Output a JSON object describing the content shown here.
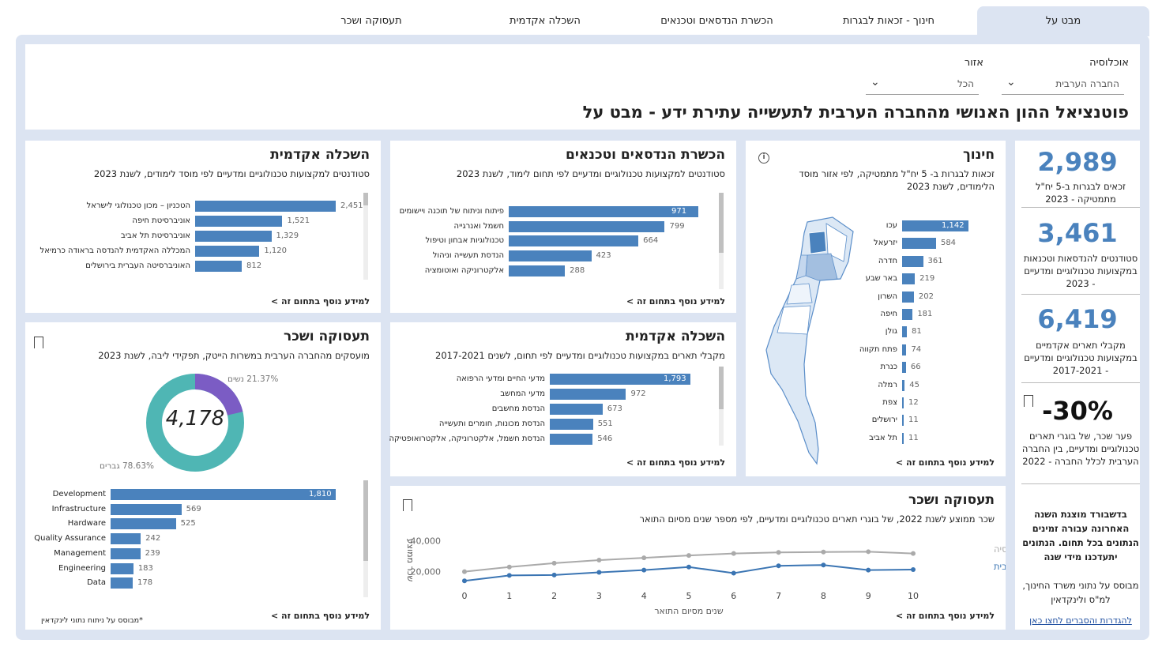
{
  "tabs": [
    {
      "label": "מבט על",
      "active": true
    },
    {
      "label": "חינוך - זכאות לבגרות",
      "active": false
    },
    {
      "label": "הכשרת הנדסאים וטכנאים",
      "active": false
    },
    {
      "label": "השכלה אקדמית",
      "active": false
    },
    {
      "label": "תעסוקה ושכר",
      "active": false
    }
  ],
  "header": {
    "title": "פוטנציאל ההון האנושי מהחברה הערבית לתעשייה עתירת ידע - מבט על",
    "population_label": "אוכלוסיה",
    "population_value": "החברה הערבית",
    "region_label": "אזור",
    "region_value": "הכל"
  },
  "kpis": [
    {
      "value": "2,989",
      "text": "זכאים לבגרות ב-5 יח\"ל מתמטיקה - 2023"
    },
    {
      "value": "3,461",
      "text": "סטודנטים להנדסאות וטכנאות במקצועות טכנולוגיים ומדעיים - 2023"
    },
    {
      "value": "6,419",
      "text": "מקבלי תארים אקדמיים במקצועות טכנולוגיים ומדעיים - 2017-2021"
    },
    {
      "value": "-30%",
      "text": "פער שכר, של בוגרי תארים טכנולוגיים ומדעיים, בין החברה הערבית לכלל החברה - 2022"
    }
  ],
  "side_note": {
    "update_text": "בדשבורד מוצגת השנה האחרונה עבורה זמינים הנתונים בכל תחום. הנתונים יתעדכנו מידי שנה",
    "source_text": "מבוסס על נתוני משרד החינוך, למ\"ס ולינקדאין",
    "link": "להגדרות והסברים לחצו כאן"
  },
  "more_link": "למידע נוסף בתחום זה >",
  "education": {
    "title": "חינוך",
    "subtitle_1": "זכאות לבגרות ב- 5 יח\"ל מתמטיקה, לפי אזור מוסד",
    "subtitle_2": "הלימודים, לשנת 2023",
    "colors": {
      "bar": "#4a82bd",
      "map_fill": "#dce8f5",
      "map_stroke": "#5b8ec9",
      "map_dark": "#4a82bd"
    }
  },
  "engineers": {
    "title": "הכשרת הנדסאים וטכנאים",
    "subtitle": "סטודנטים למקצועות טכנולוגיים ומדעיים לפי תחום לימוד, לשנת 2023"
  },
  "academic_students": {
    "title": "השכלה אקדמית",
    "subtitle": "סטודנטים למקצועות טכנולוגיים ומדעיים לפי מוסד לימודים, לשנת 2023"
  },
  "academic_degrees": {
    "title": "השכלה אקדמית",
    "subtitle": "מקבלי תארים במקצועות טכנולוגיים ומדעיים לפי תחום, לשנים 2017-2021"
  },
  "employment": {
    "title": "תעסוקה ושכר",
    "subtitle": "מועסקים מהחברה הערבית במשרות הייטק, תפקידי ליבה, לשנת 2023",
    "total": "4,178",
    "footnote": "*מבוסס על ניתוח נתוני לינקדאין",
    "colors": {
      "women": "#7b5cc4",
      "men": "#4fb6b4"
    }
  },
  "salary": {
    "title": "תעסוקה ושכר",
    "subtitle": "שכר ממוצע לשנת 2022, של בוגרי תארים טכנולוגיים ומדעיים, לפי מספר שנים מסיום התואר",
    "colors": {
      "all": "#aaaaaa",
      "arab": "#3b75b3"
    }
  },
  "chart_data": [
    {
      "type": "bar",
      "title": "חינוך",
      "categories": [
        "עכו",
        "יזרעאל",
        "חדרה",
        "באר שבע",
        "השרון",
        "חיפה",
        "גולן",
        "פתח תקווה",
        "כנרת",
        "רמלה",
        "צפת",
        "ירושלים",
        "תל אביב"
      ],
      "values": [
        1142,
        584,
        361,
        219,
        202,
        181,
        81,
        74,
        66,
        45,
        12,
        11,
        11
      ],
      "labels": [
        "1,142",
        "584",
        "361",
        "219",
        "202",
        "181",
        "81",
        "74",
        "66",
        "45",
        "12",
        "11",
        "11"
      ]
    },
    {
      "type": "bar",
      "title": "הכשרת הנדסאים וטכנאים",
      "categories": [
        "פיתוח וניתוח של תוכנה ויישומים",
        "חשמל ואנרגייה",
        "טכנולוגיות אבחון וטיפול",
        "הנדסת תעשייה וניהול",
        "אלקטרוניקה ואוטומציה"
      ],
      "values": [
        971,
        799,
        664,
        423,
        288
      ],
      "labels": [
        "971",
        "799",
        "664",
        "423",
        "288"
      ]
    },
    {
      "type": "bar",
      "title": "השכלה אקדמית",
      "categories": [
        "הטכניון – מכון טכנולוגי לישראל",
        "אוניברסיטת חיפה",
        "אוניברסיטת תל אביב",
        "המכללה האקדמית להנדסה בראודה כרמיאל",
        "האוניברסיטה העברית בירושלים"
      ],
      "values": [
        2451,
        1521,
        1329,
        1120,
        812
      ],
      "labels": [
        "2,451",
        "1,521",
        "1,329",
        "1,120",
        "812"
      ]
    },
    {
      "type": "bar",
      "title": "השכלה אקדמית",
      "categories": [
        "מדעי החיים ומדעי הרפואה",
        "מדעי המחשב",
        "הנדסת מחשבים",
        "הנדסת מכונות, חומרים ותעשייה",
        "הנדסת חשמל, אלקטרוניקה, אלקטרואופטיקה"
      ],
      "values": [
        1793,
        972,
        673,
        551,
        546
      ],
      "labels": [
        "1,793",
        "972",
        "673",
        "551",
        "546"
      ]
    },
    {
      "type": "pie",
      "title": "תעסוקה ושכר",
      "categories": [
        "נשים",
        "גברים"
      ],
      "values": [
        21.37,
        78.63
      ],
      "labels": [
        "21.37% נשים",
        "78.63% גברים"
      ]
    },
    {
      "type": "bar",
      "title": "",
      "categories": [
        "Development",
        "Infrastructure",
        "Hardware",
        "Quality Assurance",
        "Management",
        "Engineering",
        "Data"
      ],
      "values": [
        1810,
        569,
        525,
        242,
        239,
        183,
        178
      ],
      "labels": [
        "1,810",
        "569",
        "525",
        "242",
        "239",
        "183",
        "178"
      ]
    },
    {
      "type": "line",
      "title": "תעסוקה ושכר",
      "xlabel": "שנים מסיום התואר",
      "ylabel": "שכר ממוצע",
      "x": [
        0,
        1,
        2,
        3,
        4,
        5,
        6,
        7,
        8,
        9,
        10
      ],
      "yticks": [
        "20,000",
        "40,000"
      ],
      "ylim": [
        10000,
        45000
      ],
      "series": [
        {
          "name": "כלל האוכלוסיה",
          "values": [
            20000,
            23000,
            25500,
            27500,
            29000,
            30500,
            31800,
            32500,
            32800,
            33000,
            31800
          ]
        },
        {
          "name": "החברה הערבית",
          "values": [
            14000,
            17500,
            17800,
            19500,
            21000,
            23000,
            19000,
            23800,
            24300,
            21000,
            21300
          ]
        }
      ]
    }
  ]
}
